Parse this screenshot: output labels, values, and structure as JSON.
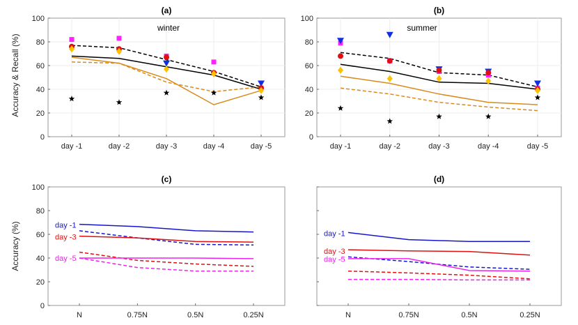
{
  "figure": {
    "top_ylabel": "Accuracy & Recall (%)",
    "bottom_ylabel": "Accuracy (%)"
  },
  "chart_data": [
    {
      "id": "a",
      "type": "line",
      "title": "(a)",
      "annotation": "winter",
      "categories": [
        "day -1",
        "day -2",
        "day -3",
        "day -4",
        "day -5"
      ],
      "ylim": [
        0,
        100
      ],
      "yticks": [
        0,
        20,
        40,
        60,
        80,
        100
      ],
      "grid": true,
      "series": [
        {
          "name": "line-black-solid",
          "kind": "line",
          "color": "#000000",
          "dash": "",
          "values": [
            68,
            66,
            59,
            52,
            40
          ]
        },
        {
          "name": "line-black-dashed",
          "kind": "line",
          "color": "#000000",
          "dash": "5,3",
          "values": [
            77,
            75,
            65,
            55,
            42
          ]
        },
        {
          "name": "line-orange-solid",
          "kind": "line",
          "color": "#d98a1a",
          "dash": "",
          "values": [
            67,
            62,
            49,
            27,
            39
          ]
        },
        {
          "name": "line-orange-dashed",
          "kind": "line",
          "color": "#d98a1a",
          "dash": "5,3",
          "values": [
            63,
            62,
            46,
            38,
            42
          ]
        },
        {
          "name": "marker-magenta-square",
          "kind": "marker",
          "shape": "square",
          "color": "#ff22ff",
          "values": [
            82,
            83,
            68,
            63,
            41
          ]
        },
        {
          "name": "marker-blue-triangle",
          "kind": "marker",
          "shape": "triangle",
          "color": "#1030e0",
          "values": [
            null,
            null,
            62,
            null,
            45
          ]
        },
        {
          "name": "marker-red-circle",
          "kind": "marker",
          "shape": "circle",
          "color": "#e01010",
          "values": [
            76,
            74,
            67,
            54,
            41
          ]
        },
        {
          "name": "marker-yellow-diamond",
          "kind": "marker",
          "shape": "diamond",
          "color": "#ffc000",
          "values": [
            74,
            72,
            57,
            53,
            39
          ]
        },
        {
          "name": "marker-black-star",
          "kind": "marker",
          "shape": "star",
          "color": "#000000",
          "values": [
            32,
            29,
            37,
            37,
            33
          ]
        }
      ]
    },
    {
      "id": "b",
      "type": "line",
      "title": "(b)",
      "annotation": "summer",
      "categories": [
        "day -1",
        "day -2",
        "day -3",
        "day -4",
        "day -5"
      ],
      "ylim": [
        0,
        100
      ],
      "yticks": [
        0,
        20,
        40,
        60,
        80,
        100
      ],
      "grid": true,
      "series": [
        {
          "name": "line-black-solid",
          "kind": "line",
          "color": "#000000",
          "dash": "",
          "values": [
            61,
            55,
            46,
            45,
            40
          ]
        },
        {
          "name": "line-black-dashed",
          "kind": "line",
          "color": "#000000",
          "dash": "5,3",
          "values": [
            71,
            66,
            54,
            52,
            42
          ]
        },
        {
          "name": "line-orange-solid",
          "kind": "line",
          "color": "#d98a1a",
          "dash": "",
          "values": [
            51,
            45,
            36,
            29,
            27
          ]
        },
        {
          "name": "line-orange-dashed",
          "kind": "line",
          "color": "#d98a1a",
          "dash": "5,3",
          "values": [
            41,
            36,
            29,
            25,
            22
          ]
        },
        {
          "name": "marker-magenta-square",
          "kind": "marker",
          "shape": "square",
          "color": "#ff22ff",
          "values": [
            79,
            64,
            55,
            52,
            41
          ]
        },
        {
          "name": "marker-blue-triangle",
          "kind": "marker",
          "shape": "triangle",
          "color": "#1030e0",
          "values": [
            81,
            86,
            57,
            55,
            45
          ]
        },
        {
          "name": "marker-red-circle",
          "kind": "marker",
          "shape": "circle",
          "color": "#e01010",
          "values": [
            68,
            64,
            56,
            54,
            40
          ]
        },
        {
          "name": "marker-yellow-diamond",
          "kind": "marker",
          "shape": "diamond",
          "color": "#ffc000",
          "values": [
            56,
            49,
            49,
            47,
            39
          ]
        },
        {
          "name": "marker-black-star",
          "kind": "marker",
          "shape": "star",
          "color": "#000000",
          "values": [
            24,
            13,
            17,
            17,
            33
          ]
        }
      ]
    },
    {
      "id": "c",
      "type": "line",
      "title": "(c)",
      "categories": [
        "N",
        "0.75N",
        "0.5N",
        "0.25N"
      ],
      "ylim": [
        0,
        100
      ],
      "yticks": [
        0,
        20,
        40,
        60,
        80,
        100
      ],
      "grid": false,
      "labels": [
        {
          "text": "day -1",
          "color": "#1515d0",
          "value": 68
        },
        {
          "text": "day -3",
          "color": "#e01010",
          "value": 58
        },
        {
          "text": "day -5",
          "color": "#ee22ee",
          "value": 40
        }
      ],
      "series": [
        {
          "name": "day-1-solid",
          "kind": "line",
          "color": "#1515d0",
          "dash": "",
          "values": [
            68.5,
            66.5,
            63,
            62
          ]
        },
        {
          "name": "day-1-dashed",
          "kind": "line",
          "color": "#1515d0",
          "dash": "5,3",
          "values": [
            63,
            57,
            51.5,
            51
          ]
        },
        {
          "name": "day-3-solid",
          "kind": "line",
          "color": "#e01010",
          "dash": "",
          "values": [
            58.5,
            57,
            54,
            53.5
          ]
        },
        {
          "name": "day-3-dashed",
          "kind": "line",
          "color": "#e01010",
          "dash": "5,3",
          "values": [
            45,
            38,
            35,
            33
          ]
        },
        {
          "name": "day-5-solid",
          "kind": "line",
          "color": "#ee22ee",
          "dash": "",
          "values": [
            40,
            40,
            40,
            39.5
          ]
        },
        {
          "name": "day-5-dashed",
          "kind": "line",
          "color": "#ee22ee",
          "dash": "5,3",
          "values": [
            40,
            32,
            29,
            29
          ]
        }
      ]
    },
    {
      "id": "d",
      "type": "line",
      "title": "(d)",
      "categories": [
        "N",
        "0.75N",
        "0.5N",
        "0.25N"
      ],
      "ylim": [
        0,
        100
      ],
      "yticks": [],
      "grid": false,
      "labels": [
        {
          "text": "day -1",
          "color": "#1515d0",
          "value": 61
        },
        {
          "text": "day -3",
          "color": "#e01010",
          "value": 46
        },
        {
          "text": "day -5",
          "color": "#ee22ee",
          "value": 39
        }
      ],
      "series": [
        {
          "name": "day-1-solid",
          "kind": "line",
          "color": "#1515d0",
          "dash": "",
          "values": [
            61.5,
            55.5,
            54,
            54
          ]
        },
        {
          "name": "day-1-dashed",
          "kind": "line",
          "color": "#1515d0",
          "dash": "5,3",
          "values": [
            41,
            37,
            32.5,
            30.5
          ]
        },
        {
          "name": "day-3-solid",
          "kind": "line",
          "color": "#e01010",
          "dash": "",
          "values": [
            47,
            46,
            45.5,
            42.5
          ]
        },
        {
          "name": "day-3-dashed",
          "kind": "line",
          "color": "#e01010",
          "dash": "5,3",
          "values": [
            29,
            27.5,
            25.5,
            22.5
          ]
        },
        {
          "name": "day-5-solid",
          "kind": "line",
          "color": "#ee22ee",
          "dash": "",
          "values": [
            39.5,
            39.5,
            29.5,
            29
          ]
        },
        {
          "name": "day-5-dashed",
          "kind": "line",
          "color": "#ee22ee",
          "dash": "5,3",
          "values": [
            22,
            22,
            21.5,
            21.5
          ]
        }
      ]
    }
  ]
}
